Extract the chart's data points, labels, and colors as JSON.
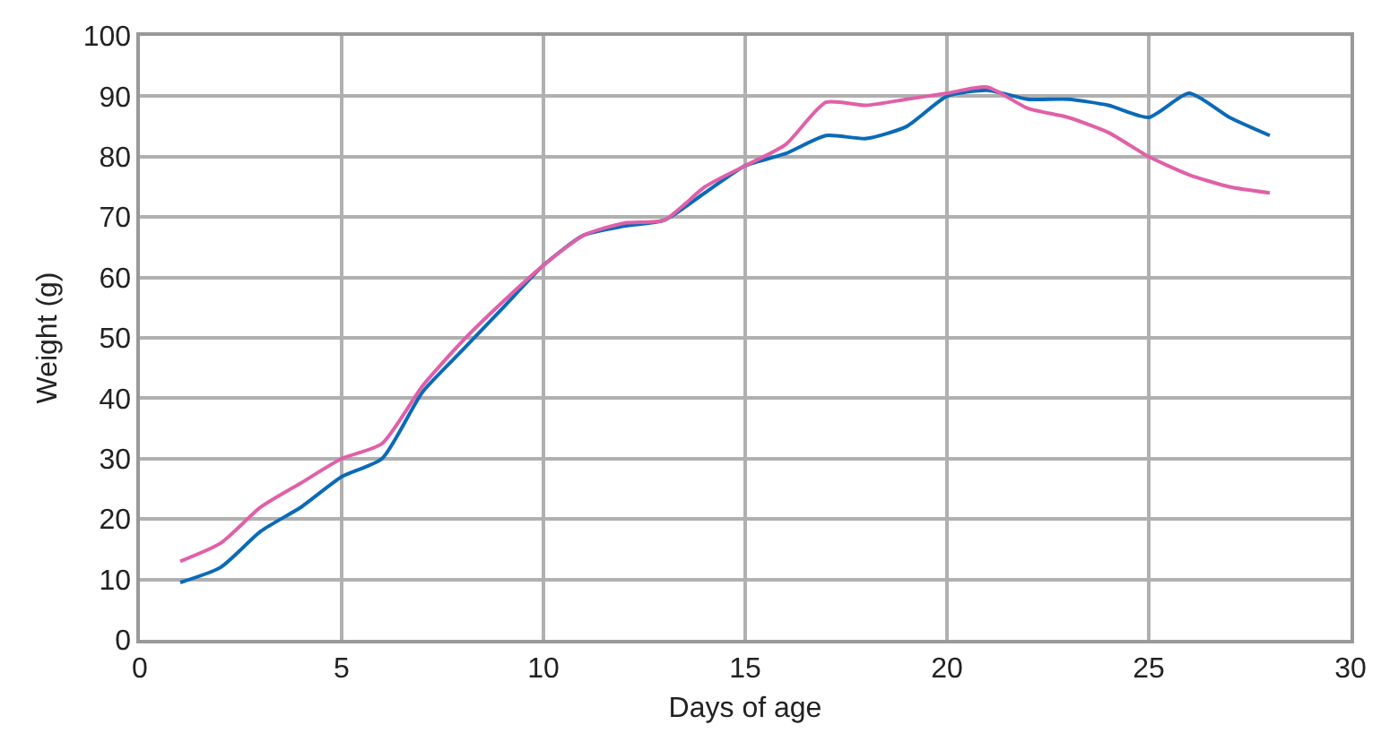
{
  "chart_data": {
    "type": "line",
    "xlabel": "Days of age",
    "ylabel": "Weight (g)",
    "x": [
      1,
      2,
      3,
      4,
      5,
      6,
      7,
      8,
      9,
      10,
      11,
      12,
      13,
      14,
      15,
      16,
      17,
      18,
      19,
      20,
      21,
      22,
      23,
      24,
      25,
      26,
      27,
      28
    ],
    "series": [
      {
        "color": "#0a6ab8",
        "values": [
          9.5,
          12,
          18,
          22,
          27,
          30,
          41,
          48,
          55,
          62,
          67,
          68.5,
          69.5,
          74,
          78.5,
          80.5,
          83.5,
          83,
          85,
          90,
          91,
          89.5,
          89.5,
          88.5,
          86.5,
          90.5,
          86.5,
          83.5
        ]
      },
      {
        "color": "#e060a8",
        "values": [
          13,
          16,
          22,
          26,
          30,
          32.5,
          42,
          49.5,
          56,
          62,
          67,
          69,
          69.5,
          75,
          78.5,
          82,
          89,
          88.5,
          89.5,
          90.5,
          91.5,
          88,
          86.5,
          84,
          80,
          77,
          75,
          74
        ]
      }
    ],
    "xlim": [
      0,
      30
    ],
    "xticks": [
      0,
      5,
      10,
      15,
      20,
      25,
      30
    ],
    "ylim": [
      0,
      100
    ],
    "yticks": [
      0,
      10,
      20,
      30,
      40,
      50,
      60,
      70,
      80,
      90,
      100
    ],
    "grid": true,
    "marker": "none",
    "line_style": "solid"
  }
}
